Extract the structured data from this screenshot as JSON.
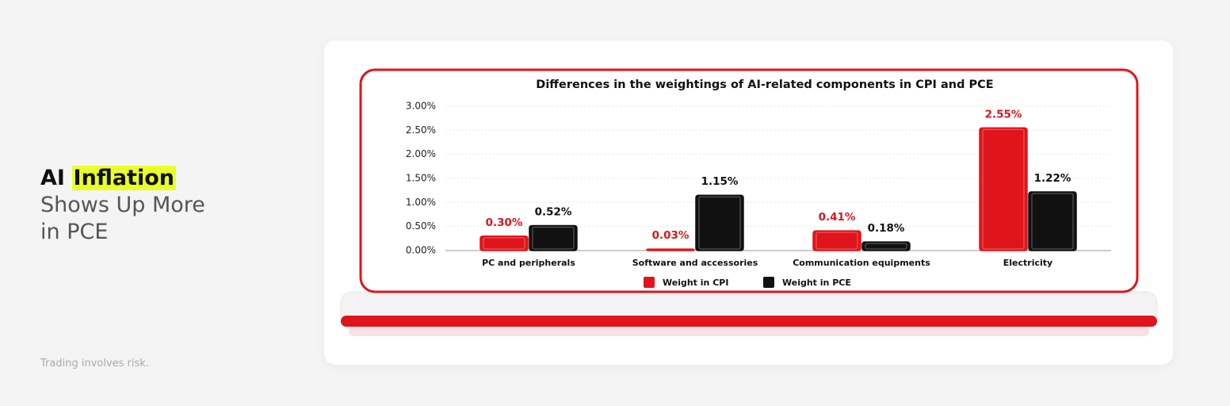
{
  "headline": {
    "lead": "AI",
    "highlight": "Inflation",
    "line2": "Shows Up More",
    "line3": "in PCE"
  },
  "disclaimer": "Trading involves risk.",
  "chart_data": {
    "type": "bar",
    "title": "Differences in the weightings of AI-related components in CPI and PCE",
    "categories": [
      "PC and peripherals",
      "Software and accessories",
      "Communication equipments",
      "Electricity"
    ],
    "series": [
      {
        "name": "Weight in CPI",
        "color": "#e0141b",
        "values": [
          0.3,
          0.03,
          0.41,
          2.55
        ],
        "value_labels": [
          "0.30%",
          "0.03%",
          "0.41%",
          "2.55%"
        ]
      },
      {
        "name": "Weight in PCE",
        "color": "#111111",
        "values": [
          0.52,
          1.15,
          0.18,
          1.22
        ],
        "value_labels": [
          "0.52%",
          "1.15%",
          "0.18%",
          "1.22%"
        ]
      }
    ],
    "ylim": [
      0,
      3
    ],
    "yticks": [
      {
        "value": 0,
        "label": "0.00%"
      },
      {
        "value": 0.5,
        "label": "0.50%"
      },
      {
        "value": 1,
        "label": "1.00%"
      },
      {
        "value": 1.5,
        "label": "1.50%"
      },
      {
        "value": 2,
        "label": "2.00%"
      },
      {
        "value": 2.5,
        "label": "2.50%"
      },
      {
        "value": 3,
        "label": "3.00%"
      }
    ],
    "grid": true
  }
}
